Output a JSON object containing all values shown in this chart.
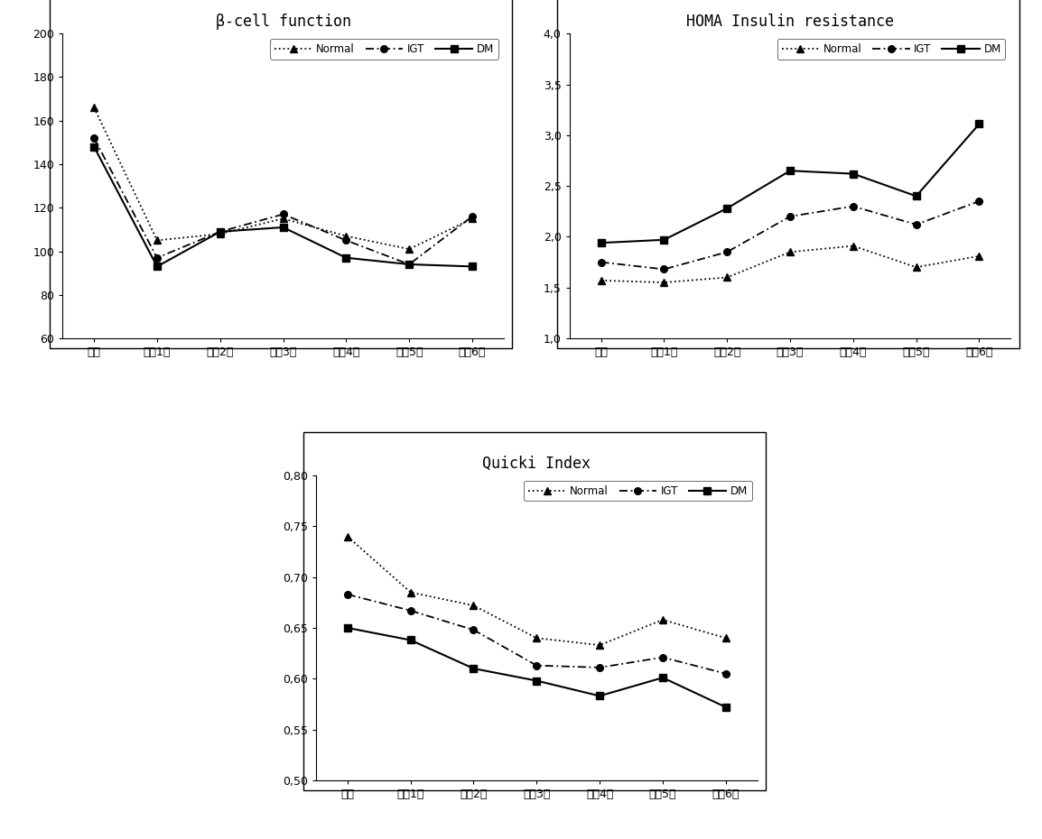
{
  "x_labels": [
    "기초",
    "추적1기",
    "추적2기",
    "추적3기",
    "추적4기",
    "추적5기",
    "추적6기"
  ],
  "beta_cell": {
    "title": "β-cell function",
    "ylim": [
      60,
      200
    ],
    "yticks": [
      60,
      80,
      100,
      120,
      140,
      160,
      180,
      200
    ],
    "ytick_labels": [
      "60",
      "80",
      "100",
      "120",
      "140",
      "160",
      "180",
      "200"
    ],
    "normal": [
      166,
      105,
      108,
      115,
      107,
      101,
      115
    ],
    "igt": [
      152,
      97,
      109,
      117,
      105,
      94,
      116
    ],
    "dm": [
      148,
      93,
      109,
      111,
      97,
      94,
      93
    ]
  },
  "homa": {
    "title": "HOMA Insulin resistance",
    "ylim": [
      1.0,
      4.0
    ],
    "yticks": [
      1.0,
      1.5,
      2.0,
      2.5,
      3.0,
      3.5,
      4.0
    ],
    "ytick_labels": [
      "1,0",
      "1,5",
      "2,0",
      "2,5",
      "3,0",
      "3,5",
      "4,0"
    ],
    "normal": [
      1.57,
      1.55,
      1.6,
      1.85,
      1.91,
      1.7,
      1.81
    ],
    "igt": [
      1.75,
      1.68,
      1.85,
      2.2,
      2.3,
      2.12,
      2.35
    ],
    "dm": [
      1.94,
      1.97,
      2.28,
      2.65,
      2.62,
      2.4,
      3.11
    ]
  },
  "quicki": {
    "title": "Quicki Index",
    "ylim": [
      0.5,
      0.8
    ],
    "yticks": [
      0.5,
      0.55,
      0.6,
      0.65,
      0.7,
      0.75,
      0.8
    ],
    "ytick_labels": [
      "0,50",
      "0,55",
      "0,60",
      "0,65",
      "0,70",
      "0,75",
      "0,80"
    ],
    "normal": [
      0.74,
      0.685,
      0.672,
      0.64,
      0.633,
      0.658,
      0.64
    ],
    "igt": [
      0.683,
      0.667,
      0.648,
      0.613,
      0.611,
      0.621,
      0.605
    ],
    "dm": [
      0.65,
      0.638,
      0.61,
      0.598,
      0.583,
      0.601,
      0.572
    ]
  },
  "legend_labels": [
    "Normal",
    "IGT",
    "DM"
  ]
}
